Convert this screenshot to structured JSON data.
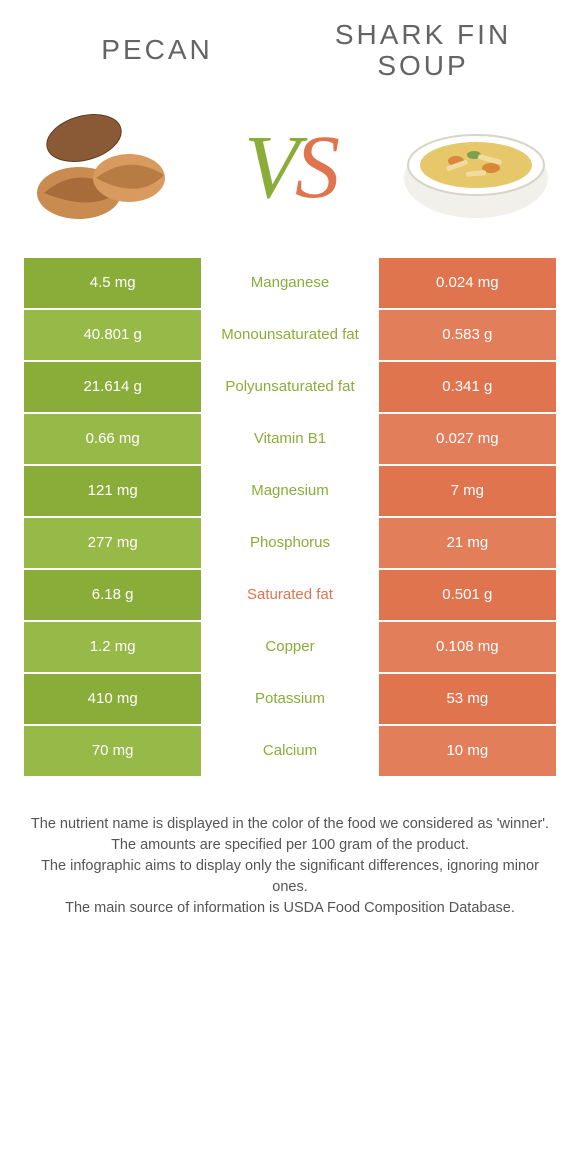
{
  "header": {
    "left_title": "PECAN",
    "right_title": "SHARK FIN\nSOUP"
  },
  "vs": {
    "v": "V",
    "s": "S"
  },
  "colors": {
    "green": "#8aad3a",
    "green_alt": "#97b947",
    "orange": "#e0744e",
    "orange_alt": "#e27e5a",
    "mid_green_text": "#8aad3a",
    "mid_orange_text": "#e0744e",
    "row_border": "#ffffff"
  },
  "table": {
    "rows": [
      {
        "left": "4.5 mg",
        "label": "Manganese",
        "right": "0.024 mg",
        "winner": "left",
        "shade": "a"
      },
      {
        "left": "40.801 g",
        "label": "Monounsaturated fat",
        "right": "0.583 g",
        "winner": "left",
        "shade": "b"
      },
      {
        "left": "21.614 g",
        "label": "Polyunsaturated fat",
        "right": "0.341 g",
        "winner": "left",
        "shade": "a"
      },
      {
        "left": "0.66 mg",
        "label": "Vitamin B1",
        "right": "0.027 mg",
        "winner": "left",
        "shade": "b"
      },
      {
        "left": "121 mg",
        "label": "Magnesium",
        "right": "7 mg",
        "winner": "left",
        "shade": "a"
      },
      {
        "left": "277 mg",
        "label": "Phosphorus",
        "right": "21 mg",
        "winner": "left",
        "shade": "b"
      },
      {
        "left": "6.18 g",
        "label": "Saturated fat",
        "right": "0.501 g",
        "winner": "right",
        "shade": "a"
      },
      {
        "left": "1.2 mg",
        "label": "Copper",
        "right": "0.108 mg",
        "winner": "left",
        "shade": "b"
      },
      {
        "left": "410 mg",
        "label": "Potassium",
        "right": "53 mg",
        "winner": "left",
        "shade": "a"
      },
      {
        "left": "70 mg",
        "label": "Calcium",
        "right": "10 mg",
        "winner": "left",
        "shade": "b"
      }
    ]
  },
  "footer": {
    "line1": "The nutrient name is displayed in the color of the food we considered as 'winner'.",
    "line2": "The amounts are specified per 100 gram of the product.",
    "line3": "The infographic aims to display only the significant differences, ignoring minor ones.",
    "line4": "The main source of information is USDA Food Composition Database."
  }
}
